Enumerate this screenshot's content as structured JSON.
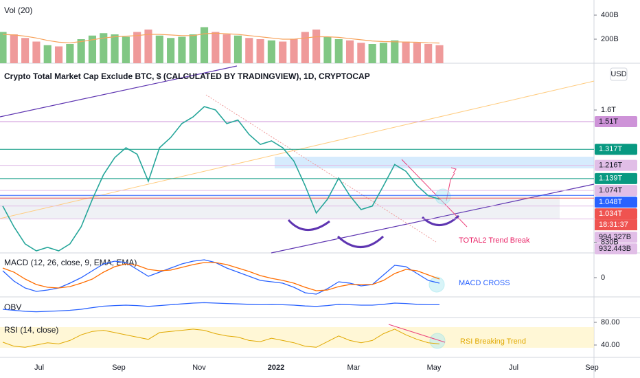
{
  "chart_data": {
    "type": "tradingview",
    "title": "Crypto Total Market Cap Exclude BTC, $ (CALCULATED BY TRADINGVIEW), 1D, CRYPTOCAP",
    "currency": "USD",
    "countdown": "18:31:37",
    "x_labels": [
      "Jul",
      "Sep",
      "Nov",
      "2022",
      "Mar",
      "May",
      "Jul",
      "Sep"
    ],
    "price": {
      "log_scale": true,
      "color": "#26a69a",
      "ylim": [
        788,
        1963
      ],
      "yticks": [
        {
          "value": 1600,
          "label": "1.6T"
        },
        {
          "value": 830,
          "label": "830B"
        }
      ],
      "values": [
        994,
        897,
        824,
        796,
        810,
        796,
        824,
        897,
        1028,
        1162,
        1264,
        1327,
        1285,
        1124,
        1327,
        1396,
        1496,
        1546,
        1627,
        1600,
        1496,
        1522,
        1417,
        1349,
        1373,
        1327,
        1242,
        1100,
        960,
        1028,
        1142,
        1046,
        977,
        994,
        1100,
        1221,
        1181,
        1100,
        1046,
        1028
      ],
      "levels": [
        {
          "value": 1510,
          "label": "1.51T",
          "color": "#ce93d8"
        },
        {
          "value": 1317,
          "label": "1.317T",
          "color": "#089981"
        },
        {
          "value": 1216,
          "label": "1.216T",
          "color": "#e1bee7"
        },
        {
          "value": 1139,
          "label": "1.139T",
          "color": "#089981"
        },
        {
          "value": 1074,
          "label": "1.074T",
          "color": "#e1bee7"
        },
        {
          "value": 1048,
          "label": "1.048T",
          "color": "#2962ff"
        },
        {
          "value": 1034,
          "label": "1.034T",
          "color": "#ef5350"
        },
        {
          "value": 994.327,
          "label": "994.327B",
          "color": "#e1bee7"
        },
        {
          "value": 932.443,
          "label": "932.443B",
          "color": "#e1bee7"
        }
      ]
    },
    "volume": {
      "title": "Vol (20)",
      "up_color": "#81c784",
      "down_color": "#ef9a9a",
      "ma_color": "#f7a35c",
      "ylim": [
        0,
        520
      ],
      "yticks": [
        {
          "value": 400,
          "label": "400B"
        },
        {
          "value": 200,
          "label": "200B"
        }
      ],
      "values": [
        260,
        240,
        210,
        180,
        150,
        140,
        160,
        200,
        230,
        250,
        240,
        220,
        260,
        280,
        230,
        210,
        220,
        240,
        300,
        260,
        240,
        230,
        210,
        200,
        190,
        180,
        200,
        260,
        280,
        220,
        200,
        190,
        170,
        160,
        170,
        190,
        180,
        170,
        160,
        150
      ],
      "ma_values": [
        240,
        235,
        225,
        210,
        190,
        175,
        170,
        180,
        195,
        210,
        220,
        225,
        230,
        240,
        240,
        235,
        230,
        230,
        245,
        250,
        245,
        240,
        230,
        220,
        210,
        200,
        200,
        210,
        220,
        220,
        215,
        205,
        195,
        185,
        180,
        178,
        176,
        174,
        170,
        168
      ]
    },
    "macd": {
      "title": "MACD (12, 26, close, 9, EMA, EMA)",
      "annotation": "MACD CROSS",
      "macd_color": "#2962ff",
      "signal_color": "#ff6d00",
      "ylim": [
        -28,
        36
      ],
      "yticks": [
        0
      ],
      "macd": [
        10,
        -5,
        -15,
        -20,
        -18,
        -15,
        -8,
        0,
        10,
        20,
        24,
        22,
        12,
        2,
        8,
        14,
        20,
        24,
        26,
        22,
        14,
        8,
        2,
        -4,
        -6,
        -8,
        -14,
        -22,
        -24,
        -16,
        -6,
        -8,
        -12,
        -10,
        4,
        18,
        16,
        6,
        -4,
        -8
      ],
      "signal": [
        14,
        8,
        -2,
        -10,
        -14,
        -15,
        -13,
        -8,
        -2,
        8,
        16,
        20,
        18,
        12,
        10,
        11,
        15,
        19,
        22,
        22,
        19,
        14,
        9,
        3,
        -1,
        -4,
        -8,
        -14,
        -19,
        -18,
        -13,
        -10,
        -10,
        -10,
        -4,
        6,
        12,
        10,
        4,
        -2
      ]
    },
    "obv": {
      "title": "OBV",
      "color": "#2962ff",
      "ylim": [
        0,
        100
      ],
      "values": [
        40,
        35,
        30,
        28,
        30,
        32,
        35,
        40,
        48,
        55,
        58,
        60,
        58,
        54,
        58,
        62,
        66,
        70,
        72,
        70,
        68,
        66,
        64,
        62,
        63,
        62,
        60,
        56,
        54,
        58,
        64,
        62,
        60,
        60,
        64,
        70,
        68,
        64,
        62,
        62
      ]
    },
    "rsi": {
      "title": "RSI (14, close)",
      "annotation": "RSI Breaking Trend",
      "color": "#e0a800",
      "ylim": [
        18.2,
        88.5
      ],
      "yticks": [
        {
          "value": 80,
          "label": "80.00"
        },
        {
          "value": 40,
          "label": "40.00"
        }
      ],
      "values": [
        45,
        38,
        36,
        40,
        44,
        42,
        48,
        58,
        64,
        66,
        62,
        58,
        54,
        50,
        62,
        64,
        66,
        68,
        66,
        60,
        56,
        54,
        48,
        46,
        52,
        48,
        44,
        38,
        36,
        46,
        56,
        48,
        44,
        48,
        60,
        68,
        58,
        50,
        44,
        42
      ]
    },
    "annotation": "TOTAL2 Trend Break"
  }
}
